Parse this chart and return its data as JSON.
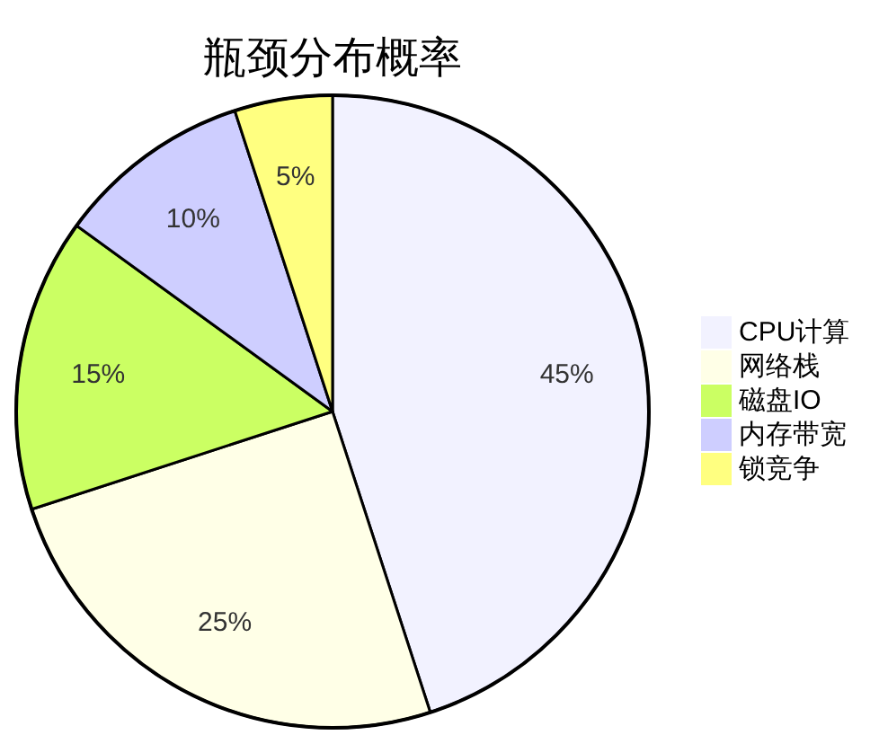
{
  "chart_data": {
    "type": "pie",
    "title": "瓶颈分布概率",
    "categories": [
      "CPU计算",
      "网络栈",
      "磁盘IO",
      "内存带宽",
      "锁竞争"
    ],
    "values": [
      45,
      25,
      15,
      10,
      5
    ],
    "colors": [
      "#f2f2ff",
      "#ffffe7",
      "#cbff63",
      "#ceceff",
      "#ffff80"
    ],
    "value_labels": [
      "45%",
      "25%",
      "15%",
      "10%",
      "5%"
    ],
    "legend": "right"
  }
}
